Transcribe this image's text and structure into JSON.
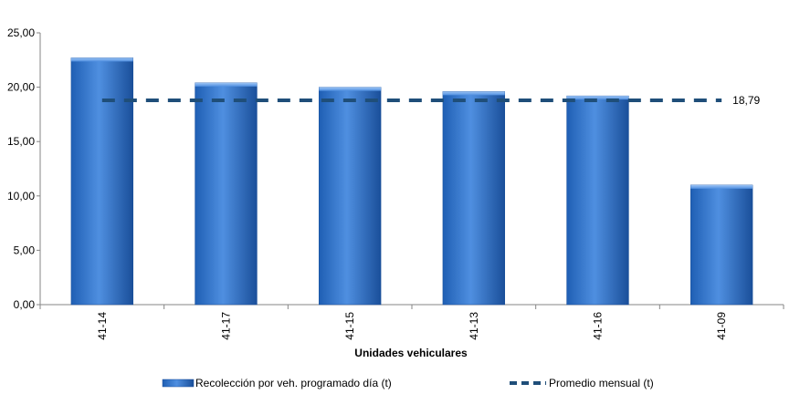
{
  "chart_data": {
    "type": "bar",
    "categories": [
      "41-14",
      "41-17",
      "41-15",
      "41-13",
      "41-16",
      "41-09"
    ],
    "series": [
      {
        "name": "Recolección por veh. programado día (t)",
        "type": "bar",
        "color": "#3a7bd5",
        "values": [
          22.7,
          20.4,
          20.0,
          19.6,
          19.2,
          11.0
        ]
      },
      {
        "name": "Promedio mensual (t)",
        "type": "line",
        "style": "dashed",
        "color": "#1f4e79",
        "values": [
          18.79,
          18.79,
          18.79,
          18.79,
          18.79,
          18.79
        ]
      }
    ],
    "average_label": "18,79",
    "xlabel": "Unidades vehiculares",
    "ylabel": "",
    "ylim": [
      0,
      25
    ],
    "yticks": [
      "0,00",
      "5,00",
      "10,00",
      "15,00",
      "20,00",
      "25,00"
    ],
    "ytick_values": [
      0,
      5,
      10,
      15,
      20,
      25
    ],
    "grid": false,
    "legend_position": "bottom"
  }
}
